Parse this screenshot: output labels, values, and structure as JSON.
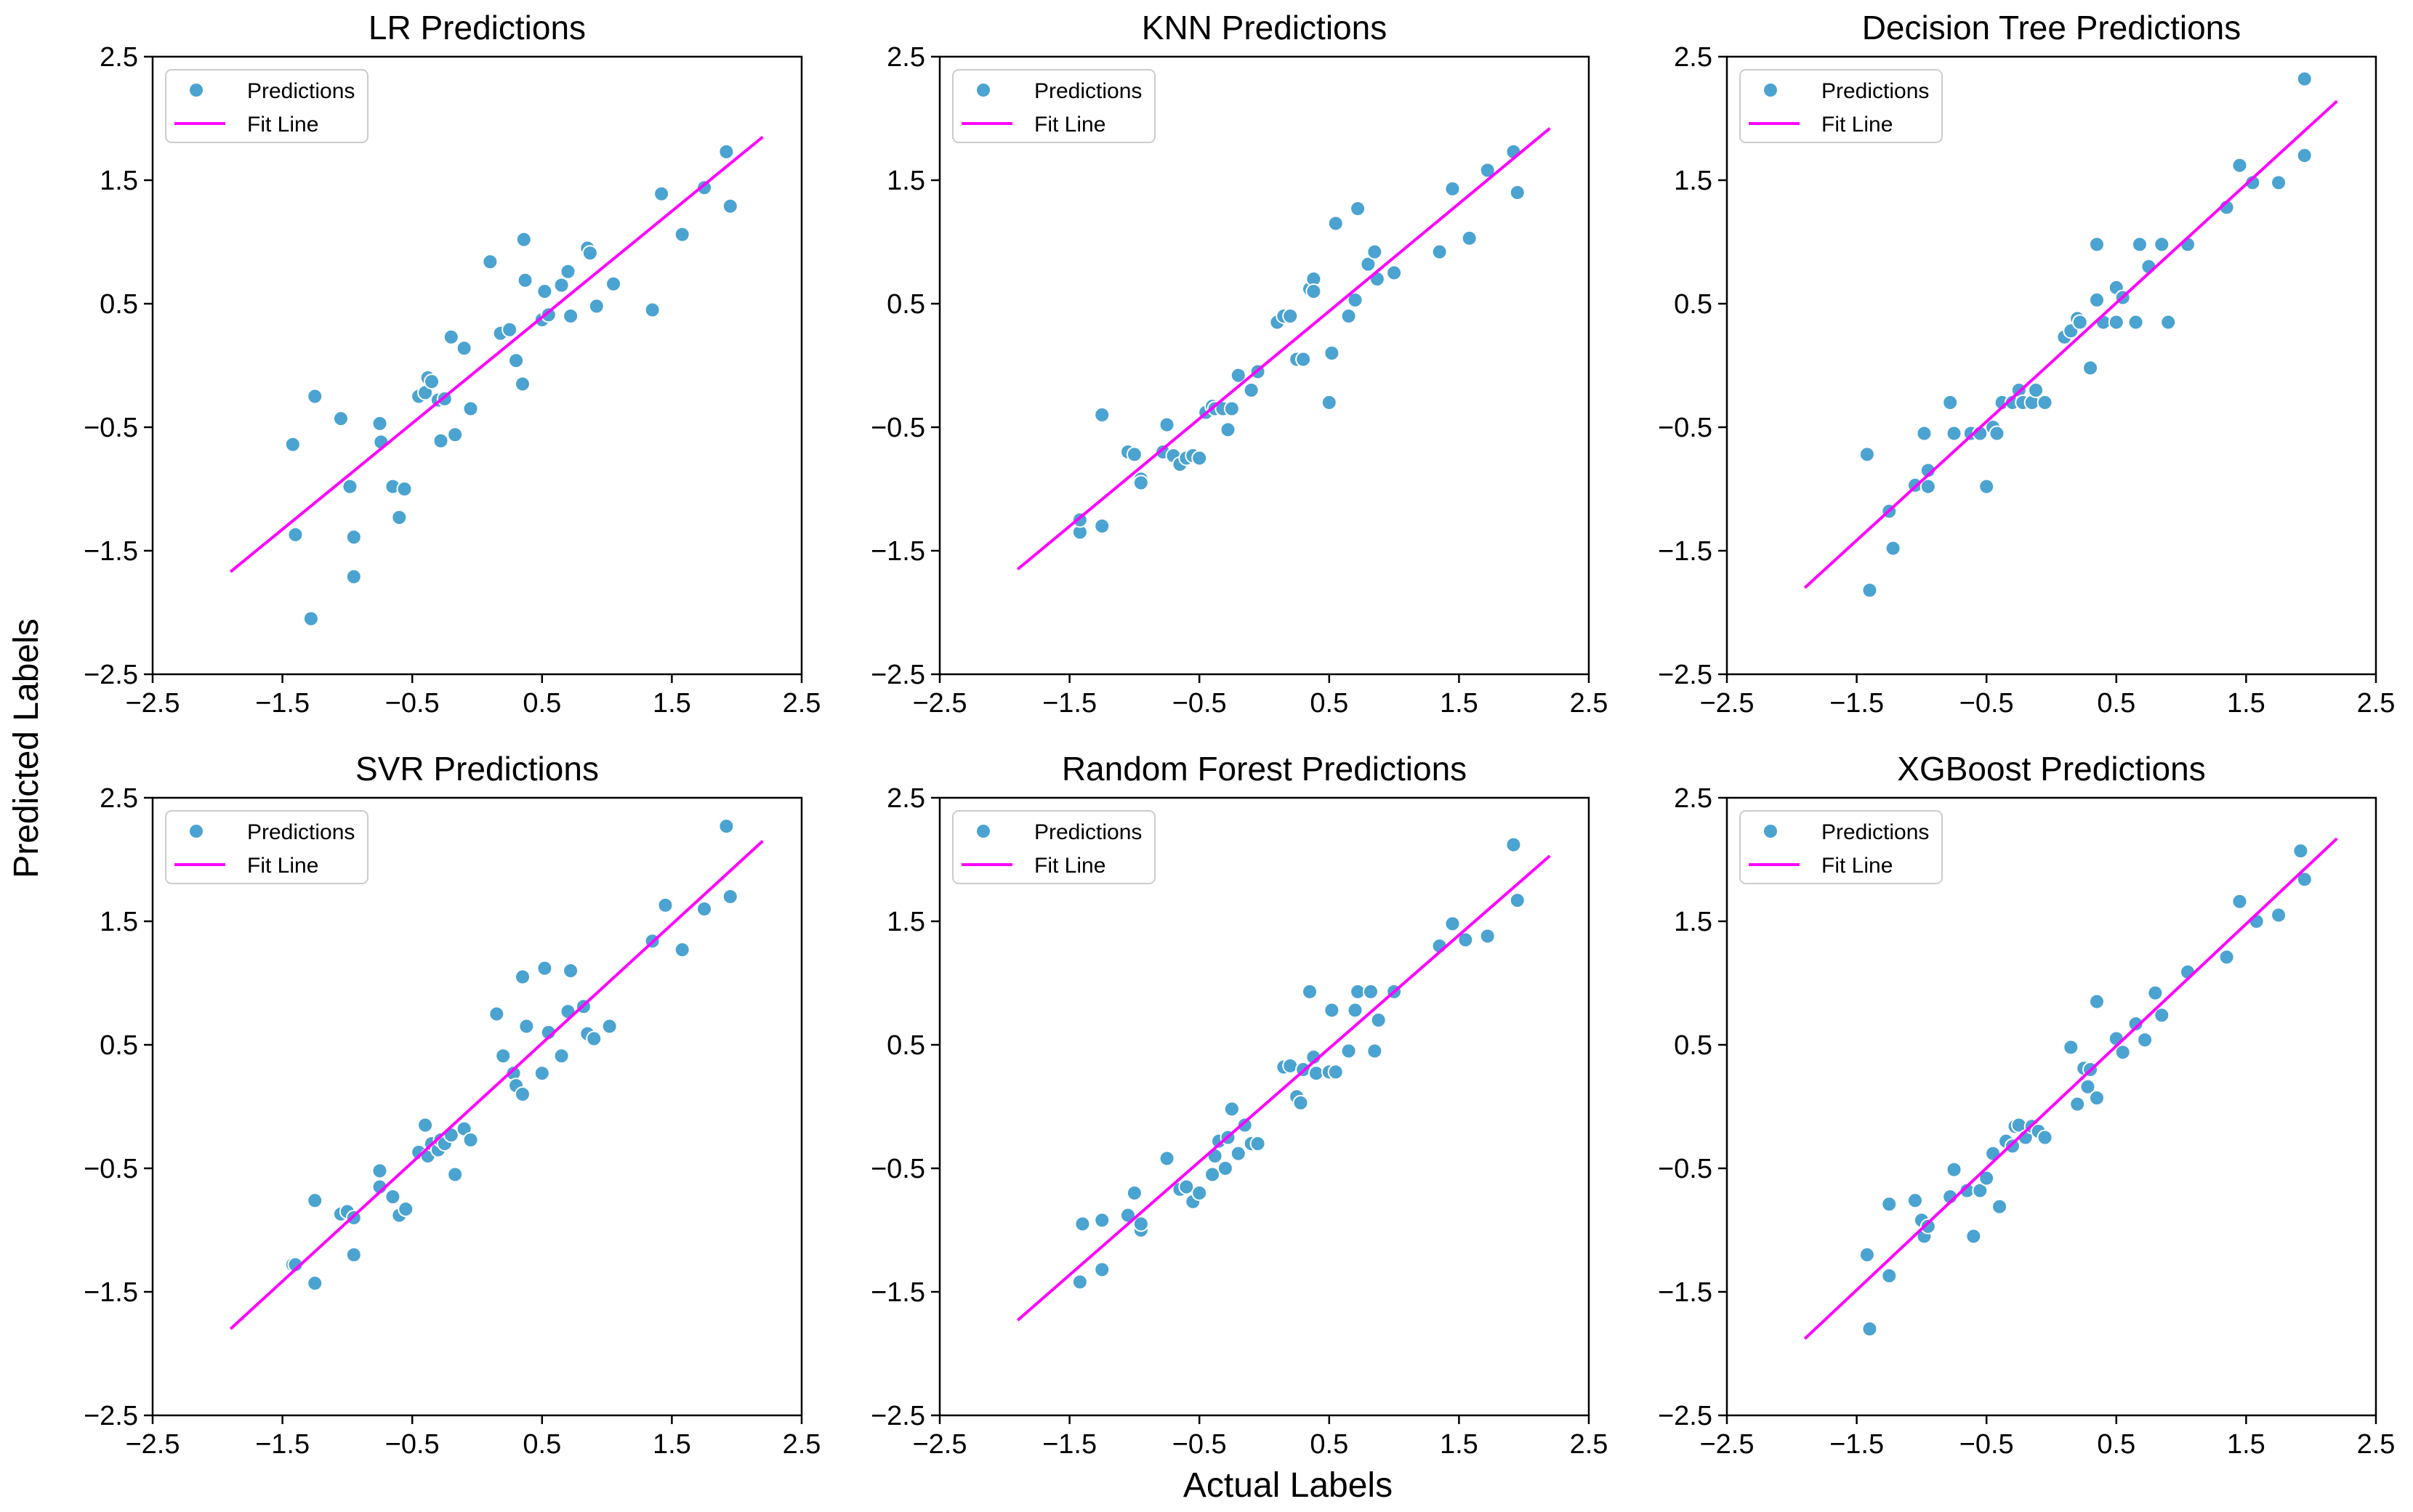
{
  "figure": {
    "xlabel": "Actual Labels",
    "ylabel": "Predicted Labels"
  },
  "colors": {
    "point": "#4aa3d0",
    "point_edge": "#ffffff",
    "fit_line": "#ff00ff",
    "axis": "#000000"
  },
  "chart_data": [
    {
      "type": "scatter",
      "title": "LR Predictions",
      "xlim": [
        -2.5,
        2.5
      ],
      "ylim": [
        -2.5,
        2.5
      ],
      "xticks": [
        -2.5,
        -1.5,
        -0.5,
        0.5,
        1.5,
        2.5
      ],
      "yticks": [
        -2.5,
        -1.5,
        -0.5,
        0.5,
        1.5,
        2.5
      ],
      "xtick_labels": [
        "−2.5",
        "−1.5",
        "−0.5",
        "0.5",
        "1.5",
        "2.5"
      ],
      "ytick_labels": [
        "−2.5",
        "−1.5",
        "−0.5",
        "0.5",
        "1.5",
        "2.5"
      ],
      "legend": [
        "Predictions",
        "Fit Line"
      ],
      "fit_line": {
        "x": [
          -1.9,
          2.2
        ],
        "y": [
          -1.67,
          1.85
        ]
      },
      "series": [
        {
          "name": "Predictions",
          "x": [
            -1.42,
            -1.4,
            -1.25,
            -1.28,
            -1.05,
            -0.98,
            -0.95,
            -0.95,
            -0.75,
            -0.74,
            -0.65,
            -0.6,
            -0.56,
            -0.45,
            -0.4,
            -0.38,
            -0.35,
            -0.3,
            -0.28,
            -0.25,
            -0.2,
            -0.17,
            -0.1,
            -0.05,
            0.1,
            0.18,
            0.25,
            0.3,
            0.35,
            0.36,
            0.37,
            0.5,
            0.52,
            0.55,
            0.65,
            0.7,
            0.72,
            0.85,
            0.87,
            0.92,
            1.05,
            1.35,
            1.42,
            1.58,
            1.75,
            1.92,
            1.95
          ],
          "y": [
            -0.64,
            -1.37,
            -0.25,
            -2.05,
            -0.43,
            -0.98,
            -1.39,
            -1.71,
            -0.47,
            -0.62,
            -0.98,
            -1.23,
            -1.0,
            -0.25,
            -0.22,
            -0.1,
            -0.13,
            -0.28,
            -0.61,
            -0.27,
            0.23,
            -0.56,
            0.14,
            -0.35,
            0.84,
            0.26,
            0.29,
            0.04,
            -0.15,
            1.02,
            0.69,
            0.37,
            0.6,
            0.41,
            0.65,
            0.76,
            0.4,
            0.95,
            0.91,
            0.48,
            0.66,
            0.45,
            1.39,
            1.06,
            1.44,
            1.73,
            1.29
          ]
        }
      ]
    },
    {
      "type": "scatter",
      "title": "KNN Predictions",
      "xlim": [
        -2.5,
        2.5
      ],
      "ylim": [
        -2.5,
        2.5
      ],
      "xticks": [
        -2.5,
        -1.5,
        -0.5,
        0.5,
        1.5,
        2.5
      ],
      "yticks": [
        -2.5,
        -1.5,
        -0.5,
        0.5,
        1.5,
        2.5
      ],
      "xtick_labels": [
        "−2.5",
        "−1.5",
        "−0.5",
        "0.5",
        "1.5",
        "2.5"
      ],
      "ytick_labels": [
        "−2.5",
        "−1.5",
        "−0.5",
        "0.5",
        "1.5",
        "2.5"
      ],
      "legend": [
        "Predictions",
        "Fit Line"
      ],
      "fit_line": {
        "x": [
          -1.9,
          2.2
        ],
        "y": [
          -1.65,
          1.92
        ]
      },
      "series": [
        {
          "name": "Predictions",
          "x": [
            -1.42,
            -1.42,
            -1.25,
            -1.25,
            -1.05,
            -1.0,
            -0.95,
            -0.95,
            -0.78,
            -0.75,
            -0.7,
            -0.65,
            -0.6,
            -0.55,
            -0.5,
            -0.45,
            -0.4,
            -0.38,
            -0.32,
            -0.28,
            -0.25,
            -0.2,
            -0.1,
            -0.05,
            0.1,
            0.15,
            0.2,
            0.25,
            0.3,
            0.35,
            0.38,
            0.38,
            0.5,
            0.52,
            0.55,
            0.65,
            0.7,
            0.72,
            0.8,
            0.85,
            0.87,
            1.0,
            1.35,
            1.45,
            1.58,
            1.72,
            1.92,
            1.95
          ],
          "y": [
            -1.35,
            -1.25,
            -1.3,
            -0.4,
            -0.7,
            -0.72,
            -0.92,
            -0.95,
            -0.7,
            -0.48,
            -0.73,
            -0.8,
            -0.75,
            -0.73,
            -0.75,
            -0.38,
            -0.33,
            -0.35,
            -0.35,
            -0.52,
            -0.35,
            -0.08,
            -0.2,
            -0.05,
            0.35,
            0.4,
            0.4,
            0.05,
            0.05,
            0.62,
            0.7,
            0.6,
            -0.3,
            0.1,
            1.15,
            0.4,
            0.53,
            1.27,
            0.82,
            0.92,
            0.7,
            0.75,
            0.92,
            1.43,
            1.03,
            1.58,
            1.73,
            1.4
          ]
        }
      ]
    },
    {
      "type": "scatter",
      "title": "Decision Tree Predictions",
      "xlim": [
        -2.5,
        2.5
      ],
      "ylim": [
        -2.5,
        2.5
      ],
      "xticks": [
        -2.5,
        -1.5,
        -0.5,
        0.5,
        1.5,
        2.5
      ],
      "yticks": [
        -2.5,
        -1.5,
        -0.5,
        0.5,
        1.5,
        2.5
      ],
      "xtick_labels": [
        "−2.5",
        "−1.5",
        "−0.5",
        "0.5",
        "1.5",
        "2.5"
      ],
      "ytick_labels": [
        "−2.5",
        "−1.5",
        "−0.5",
        "0.5",
        "1.5",
        "2.5"
      ],
      "legend": [
        "Predictions",
        "Fit Line"
      ],
      "fit_line": {
        "x": [
          -1.9,
          2.2
        ],
        "y": [
          -1.8,
          2.14
        ]
      },
      "series": [
        {
          "name": "Predictions",
          "x": [
            -1.42,
            -1.4,
            -1.25,
            -1.22,
            -1.05,
            -0.98,
            -0.95,
            -0.95,
            -0.78,
            -0.75,
            -0.62,
            -0.55,
            -0.5,
            -0.45,
            -0.42,
            -0.38,
            -0.3,
            -0.25,
            -0.22,
            -0.15,
            -0.12,
            -0.05,
            0.1,
            0.15,
            0.2,
            0.22,
            0.3,
            0.35,
            0.35,
            0.4,
            0.5,
            0.5,
            0.55,
            0.65,
            0.68,
            0.75,
            0.85,
            0.85,
            0.9,
            1.05,
            1.35,
            1.45,
            1.55,
            1.75,
            1.95,
            1.95
          ],
          "y": [
            -0.72,
            -1.82,
            -1.18,
            -1.48,
            -0.97,
            -0.55,
            -0.85,
            -0.98,
            -0.3,
            -0.55,
            -0.55,
            -0.55,
            -0.98,
            -0.5,
            -0.55,
            -0.3,
            -0.3,
            -0.2,
            -0.3,
            -0.3,
            -0.2,
            -0.3,
            0.23,
            0.28,
            0.38,
            0.35,
            -0.02,
            0.53,
            0.98,
            0.35,
            0.35,
            0.63,
            0.55,
            0.35,
            0.98,
            0.8,
            0.98,
            0.98,
            0.35,
            0.98,
            1.28,
            1.62,
            1.48,
            1.48,
            2.32,
            1.7
          ]
        }
      ]
    },
    {
      "type": "scatter",
      "title": "SVR Predictions",
      "xlim": [
        -2.5,
        2.5
      ],
      "ylim": [
        -2.5,
        2.5
      ],
      "xticks": [
        -2.5,
        -1.5,
        -0.5,
        0.5,
        1.5,
        2.5
      ],
      "yticks": [
        -2.5,
        -1.5,
        -0.5,
        0.5,
        1.5,
        2.5
      ],
      "xtick_labels": [
        "−2.5",
        "−1.5",
        "−0.5",
        "0.5",
        "1.5",
        "2.5"
      ],
      "ytick_labels": [
        "−2.5",
        "−1.5",
        "−0.5",
        "0.5",
        "1.5",
        "2.5"
      ],
      "legend": [
        "Predictions",
        "Fit Line"
      ],
      "fit_line": {
        "x": [
          -1.9,
          2.2
        ],
        "y": [
          -1.8,
          2.15
        ]
      },
      "series": [
        {
          "name": "Predictions",
          "x": [
            -1.42,
            -1.4,
            -1.25,
            -1.25,
            -1.05,
            -1.0,
            -0.95,
            -0.95,
            -0.75,
            -0.75,
            -0.65,
            -0.6,
            -0.55,
            -0.45,
            -0.4,
            -0.38,
            -0.35,
            -0.3,
            -0.28,
            -0.25,
            -0.2,
            -0.17,
            -0.1,
            -0.05,
            0.15,
            0.2,
            0.28,
            0.3,
            0.35,
            0.35,
            0.38,
            0.5,
            0.52,
            0.55,
            0.65,
            0.7,
            0.72,
            0.82,
            0.85,
            0.9,
            1.02,
            1.35,
            1.45,
            1.58,
            1.75,
            1.92,
            1.95
          ],
          "y": [
            -1.28,
            -1.28,
            -0.76,
            -1.43,
            -0.87,
            -0.85,
            -0.9,
            -1.2,
            -0.52,
            -0.65,
            -0.73,
            -0.88,
            -0.83,
            -0.37,
            -0.15,
            -0.4,
            -0.3,
            -0.35,
            -0.27,
            -0.3,
            -0.23,
            -0.55,
            -0.18,
            -0.27,
            0.75,
            0.41,
            0.27,
            0.17,
            0.1,
            1.05,
            0.65,
            0.27,
            1.12,
            0.6,
            0.41,
            0.77,
            1.1,
            0.81,
            0.59,
            0.55,
            0.65,
            1.34,
            1.63,
            1.27,
            1.6,
            2.27,
            1.7
          ]
        }
      ]
    },
    {
      "type": "scatter",
      "title": "Random Forest Predictions",
      "xlim": [
        -2.5,
        2.5
      ],
      "ylim": [
        -2.5,
        2.5
      ],
      "xticks": [
        -2.5,
        -1.5,
        -0.5,
        0.5,
        1.5,
        2.5
      ],
      "yticks": [
        -2.5,
        -1.5,
        -0.5,
        0.5,
        1.5,
        2.5
      ],
      "xtick_labels": [
        "−2.5",
        "−1.5",
        "−0.5",
        "0.5",
        "1.5",
        "2.5"
      ],
      "ytick_labels": [
        "−2.5",
        "−1.5",
        "−0.5",
        "0.5",
        "1.5",
        "2.5"
      ],
      "legend": [
        "Predictions",
        "Fit Line"
      ],
      "fit_line": {
        "x": [
          -1.9,
          2.2
        ],
        "y": [
          -1.73,
          2.03
        ]
      },
      "series": [
        {
          "name": "Predictions",
          "x": [
            -1.42,
            -1.4,
            -1.25,
            -1.25,
            -1.05,
            -1.0,
            -0.95,
            -0.95,
            -0.75,
            -0.65,
            -0.6,
            -0.55,
            -0.5,
            -0.4,
            -0.38,
            -0.35,
            -0.3,
            -0.28,
            -0.25,
            -0.2,
            -0.15,
            -0.1,
            -0.05,
            0.15,
            0.2,
            0.25,
            0.28,
            0.3,
            0.35,
            0.38,
            0.4,
            0.5,
            0.52,
            0.55,
            0.65,
            0.7,
            0.72,
            0.82,
            0.85,
            0.88,
            1.0,
            1.35,
            1.45,
            1.55,
            1.72,
            1.92,
            1.95
          ],
          "y": [
            -1.42,
            -0.95,
            -0.92,
            -1.32,
            -0.88,
            -0.7,
            -1.0,
            -0.95,
            -0.42,
            -0.67,
            -0.65,
            -0.77,
            -0.7,
            -0.55,
            -0.4,
            -0.28,
            -0.5,
            -0.25,
            -0.02,
            -0.38,
            -0.15,
            -0.3,
            -0.3,
            0.32,
            0.33,
            0.08,
            0.03,
            0.3,
            0.93,
            0.4,
            0.27,
            0.28,
            0.78,
            0.28,
            0.45,
            0.78,
            0.93,
            0.93,
            0.45,
            0.7,
            0.93,
            1.3,
            1.48,
            1.35,
            1.38,
            2.12,
            1.67
          ]
        }
      ]
    },
    {
      "type": "scatter",
      "title": "XGBoost Predictions",
      "xlim": [
        -2.5,
        2.5
      ],
      "ylim": [
        -2.5,
        2.5
      ],
      "xticks": [
        -2.5,
        -1.5,
        -0.5,
        0.5,
        1.5,
        2.5
      ],
      "yticks": [
        -2.5,
        -1.5,
        -0.5,
        0.5,
        1.5,
        2.5
      ],
      "xtick_labels": [
        "−2.5",
        "−1.5",
        "−0.5",
        "0.5",
        "1.5",
        "2.5"
      ],
      "ytick_labels": [
        "−2.5",
        "−1.5",
        "−0.5",
        "0.5",
        "1.5",
        "2.5"
      ],
      "legend": [
        "Predictions",
        "Fit Line"
      ],
      "fit_line": {
        "x": [
          -1.9,
          2.2
        ],
        "y": [
          -1.88,
          2.17
        ]
      },
      "series": [
        {
          "name": "Predictions",
          "x": [
            -1.42,
            -1.4,
            -1.25,
            -1.25,
            -1.05,
            -1.0,
            -0.98,
            -0.95,
            -0.78,
            -0.75,
            -0.65,
            -0.6,
            -0.55,
            -0.5,
            -0.45,
            -0.4,
            -0.35,
            -0.3,
            -0.28,
            -0.25,
            -0.2,
            -0.15,
            -0.1,
            -0.05,
            0.15,
            0.2,
            0.25,
            0.28,
            0.3,
            0.35,
            0.35,
            0.5,
            0.55,
            0.65,
            0.72,
            0.8,
            0.85,
            1.05,
            1.35,
            1.45,
            1.58,
            1.75,
            1.92,
            1.95
          ],
          "y": [
            -1.2,
            -1.8,
            -0.79,
            -1.37,
            -0.76,
            -0.92,
            -1.05,
            -0.97,
            -0.73,
            -0.51,
            -0.68,
            -1.05,
            -0.68,
            -0.58,
            -0.38,
            -0.81,
            -0.28,
            -0.32,
            -0.16,
            -0.15,
            -0.25,
            -0.16,
            -0.2,
            -0.25,
            0.48,
            0.02,
            0.31,
            0.16,
            0.3,
            0.85,
            0.07,
            0.55,
            0.44,
            0.67,
            0.54,
            0.92,
            0.74,
            1.09,
            1.21,
            1.66,
            1.5,
            1.55,
            2.07,
            1.84
          ]
        }
      ]
    }
  ]
}
